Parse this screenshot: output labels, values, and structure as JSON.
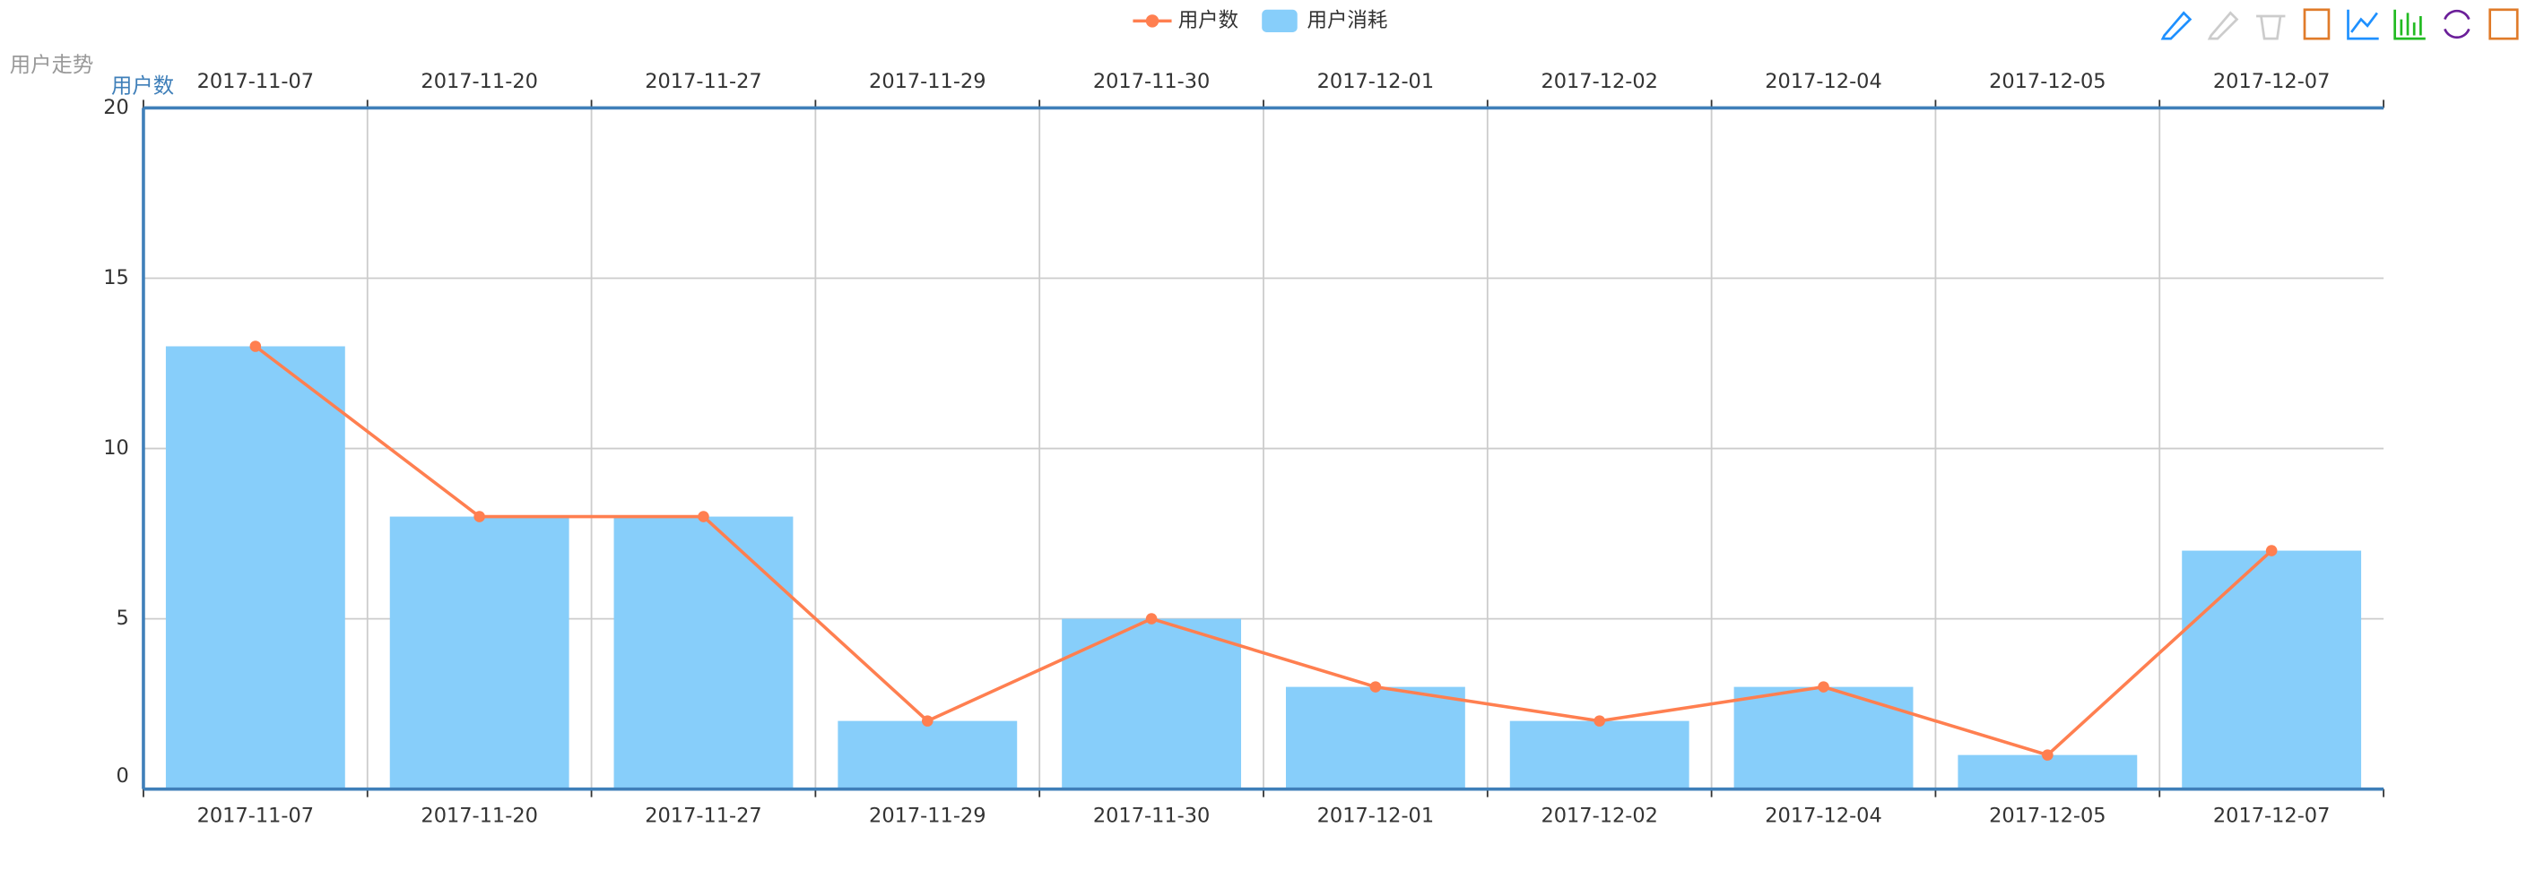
{
  "chart_data": {
    "type": "bar-line",
    "title": "用户走势",
    "y_axis_label": "用户数",
    "categories": [
      "2017-11-07",
      "2017-11-20",
      "2017-11-27",
      "2017-11-29",
      "2017-11-30",
      "2017-12-01",
      "2017-12-02",
      "2017-12-04",
      "2017-12-05",
      "2017-12-07"
    ],
    "series": [
      {
        "name": "用户数",
        "type": "line",
        "color": "#ff7f50",
        "values": [
          13,
          8,
          8,
          2,
          5,
          3,
          2,
          3,
          1,
          7
        ]
      },
      {
        "name": "用户消耗",
        "type": "bar",
        "color": "#87cefa",
        "values": [
          13,
          8,
          8,
          2,
          5,
          3,
          2,
          3,
          1,
          7
        ]
      }
    ],
    "ylim": [
      0,
      20
    ],
    "yticks": [
      0,
      5,
      10,
      15,
      20
    ],
    "grid": true
  }
}
